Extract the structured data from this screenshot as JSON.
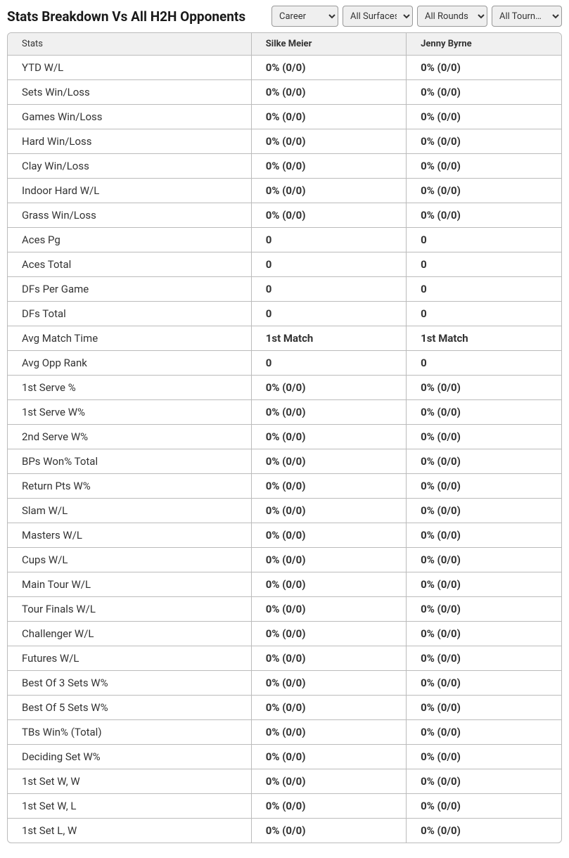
{
  "header": {
    "title": "Stats Breakdown Vs All H2H Opponents",
    "filters": {
      "career": "Career",
      "surfaces": "All Surfaces",
      "rounds": "All Rounds",
      "tournaments": "All Tourn…"
    }
  },
  "table": {
    "columns": {
      "stat": "Stats",
      "player1": "Silke Meier",
      "player2": "Jenny Byrne"
    },
    "rows": [
      {
        "stat": "YTD W/L",
        "p1": "0% (0/0)",
        "p2": "0% (0/0)"
      },
      {
        "stat": "Sets Win/Loss",
        "p1": "0% (0/0)",
        "p2": "0% (0/0)"
      },
      {
        "stat": "Games Win/Loss",
        "p1": "0% (0/0)",
        "p2": "0% (0/0)"
      },
      {
        "stat": "Hard Win/Loss",
        "p1": "0% (0/0)",
        "p2": "0% (0/0)"
      },
      {
        "stat": "Clay Win/Loss",
        "p1": "0% (0/0)",
        "p2": "0% (0/0)"
      },
      {
        "stat": "Indoor Hard W/L",
        "p1": "0% (0/0)",
        "p2": "0% (0/0)"
      },
      {
        "stat": "Grass Win/Loss",
        "p1": "0% (0/0)",
        "p2": "0% (0/0)"
      },
      {
        "stat": "Aces Pg",
        "p1": "0",
        "p2": "0"
      },
      {
        "stat": "Aces Total",
        "p1": "0",
        "p2": "0"
      },
      {
        "stat": "DFs Per Game",
        "p1": "0",
        "p2": "0"
      },
      {
        "stat": "DFs Total",
        "p1": "0",
        "p2": "0"
      },
      {
        "stat": "Avg Match Time",
        "p1": "1st Match",
        "p2": "1st Match"
      },
      {
        "stat": "Avg Opp Rank",
        "p1": "0",
        "p2": "0"
      },
      {
        "stat": "1st Serve %",
        "p1": "0% (0/0)",
        "p2": "0% (0/0)"
      },
      {
        "stat": "1st Serve W%",
        "p1": "0% (0/0)",
        "p2": "0% (0/0)"
      },
      {
        "stat": "2nd Serve W%",
        "p1": "0% (0/0)",
        "p2": "0% (0/0)"
      },
      {
        "stat": "BPs Won% Total",
        "p1": "0% (0/0)",
        "p2": "0% (0/0)"
      },
      {
        "stat": "Return Pts W%",
        "p1": "0% (0/0)",
        "p2": "0% (0/0)"
      },
      {
        "stat": "Slam W/L",
        "p1": "0% (0/0)",
        "p2": "0% (0/0)"
      },
      {
        "stat": "Masters W/L",
        "p1": "0% (0/0)",
        "p2": "0% (0/0)"
      },
      {
        "stat": "Cups W/L",
        "p1": "0% (0/0)",
        "p2": "0% (0/0)"
      },
      {
        "stat": "Main Tour W/L",
        "p1": "0% (0/0)",
        "p2": "0% (0/0)"
      },
      {
        "stat": "Tour Finals W/L",
        "p1": "0% (0/0)",
        "p2": "0% (0/0)"
      },
      {
        "stat": "Challenger W/L",
        "p1": "0% (0/0)",
        "p2": "0% (0/0)"
      },
      {
        "stat": "Futures W/L",
        "p1": "0% (0/0)",
        "p2": "0% (0/0)"
      },
      {
        "stat": "Best Of 3 Sets W%",
        "p1": "0% (0/0)",
        "p2": "0% (0/0)"
      },
      {
        "stat": "Best Of 5 Sets W%",
        "p1": "0% (0/0)",
        "p2": "0% (0/0)"
      },
      {
        "stat": "TBs Win% (Total)",
        "p1": "0% (0/0)",
        "p2": "0% (0/0)"
      },
      {
        "stat": "Deciding Set W%",
        "p1": "0% (0/0)",
        "p2": "0% (0/0)"
      },
      {
        "stat": "1st Set W, W",
        "p1": "0% (0/0)",
        "p2": "0% (0/0)"
      },
      {
        "stat": "1st Set W, L",
        "p1": "0% (0/0)",
        "p2": "0% (0/0)"
      },
      {
        "stat": "1st Set L, W",
        "p1": "0% (0/0)",
        "p2": "0% (0/0)"
      }
    ]
  }
}
